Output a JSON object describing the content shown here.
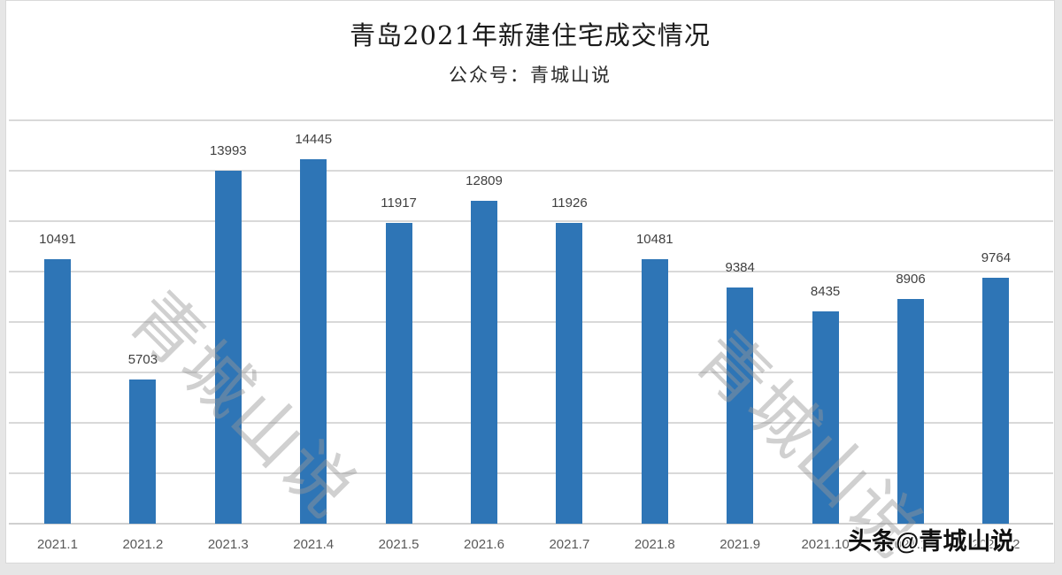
{
  "header": {
    "title": "青岛2021年新建住宅成交情况",
    "subtitle": "公众号：青城山说"
  },
  "watermarks": {
    "diagonal_1": "青城山说",
    "diagonal_2": "青城山说",
    "footer": "头条@青城山说"
  },
  "colors": {
    "bar": "#2e75b6",
    "gridline": "#d9d9d9",
    "background": "#ffffff"
  },
  "chart_data": {
    "type": "bar",
    "title": "青岛2021年新建住宅成交情况",
    "subtitle": "公众号：青城山说",
    "categories": [
      "2021.1",
      "2021.2",
      "2021.3",
      "2021.4",
      "2021.5",
      "2021.6",
      "2021.7",
      "2021.8",
      "2021.9",
      "2021.10",
      "2021.11",
      "2021.12"
    ],
    "values": [
      10491,
      5703,
      13993,
      14445,
      11917,
      12809,
      11926,
      10481,
      9384,
      8435,
      8906,
      9764
    ],
    "labels": [
      "10491",
      "5703",
      "13993",
      "14445",
      "11917",
      "12809",
      "11926",
      "10481",
      "9384",
      "8435",
      "8906",
      "9764"
    ],
    "xlabel": "",
    "ylabel": "",
    "ylim": [
      0,
      16000
    ],
    "ytick_step": 2000,
    "y_tick_labels_visible": false,
    "grid": true,
    "data_labels": true,
    "legend": "none"
  }
}
